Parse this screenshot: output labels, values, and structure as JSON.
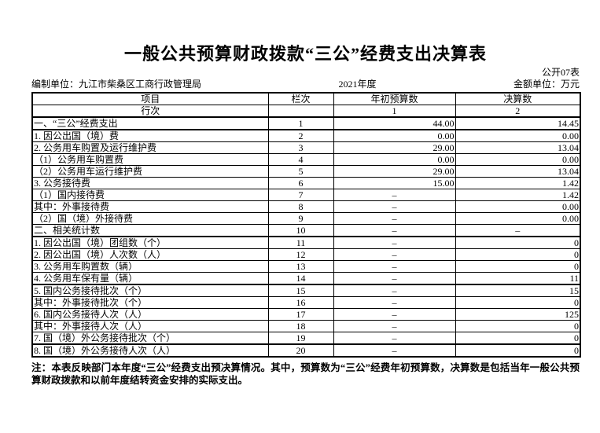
{
  "doc": {
    "title": "一般公共预算财政拨款“三公”经费支出决算表",
    "table_code": "公开07表",
    "prepared_by": "编制单位：九江市柴桑区工商行政管理局",
    "fiscal_year": "2021年度",
    "amount_unit": "金额单位：万元"
  },
  "table": {
    "col_headers": {
      "item": "项目",
      "column_no": "栏次",
      "initial_budget": "年初预算数",
      "final_accounts": "决算数"
    },
    "sub_headers": {
      "row_label": "行次",
      "column_no": "",
      "initial_budget": "1",
      "final_accounts": "2"
    },
    "rows": [
      {
        "label": "一、“三公”经费支出",
        "line_no": "1",
        "initial_budget": "44.00",
        "final_accounts": "14.45",
        "indent": 0,
        "thick_bottom": true
      },
      {
        "label": "1. 因公出国（境）费",
        "line_no": "2",
        "initial_budget": "0.00",
        "final_accounts": "0.00",
        "indent": 1,
        "thick_bottom": false
      },
      {
        "label": "2. 公务用车购置及运行维护费",
        "line_no": "3",
        "initial_budget": "29.00",
        "final_accounts": "13.04",
        "indent": 1,
        "thick_bottom": false
      },
      {
        "label": "（1）公务用车购置费",
        "line_no": "4",
        "initial_budget": "0.00",
        "final_accounts": "0.00",
        "indent": 2,
        "thick_bottom": false
      },
      {
        "label": "（2）公务用车运行维护费",
        "line_no": "5",
        "initial_budget": "29.00",
        "final_accounts": "13.04",
        "indent": 2,
        "thick_bottom": false
      },
      {
        "label": "3. 公务接待费",
        "line_no": "6",
        "initial_budget": "15.00",
        "final_accounts": "1.42",
        "indent": 1,
        "thick_bottom": false
      },
      {
        "label": "（1）国内接待费",
        "line_no": "7",
        "initial_budget": "–",
        "final_accounts": "1.42",
        "indent": 2,
        "thick_bottom": false
      },
      {
        "label": "其中：外事接待费",
        "line_no": "8",
        "initial_budget": "–",
        "final_accounts": "0.00",
        "indent": 3,
        "thick_bottom": false
      },
      {
        "label": "（2）国（境）外接待费",
        "line_no": "9",
        "initial_budget": "–",
        "final_accounts": "0.00",
        "indent": 2,
        "thick_bottom": false
      },
      {
        "label": "二、相关统计数",
        "line_no": "10",
        "initial_budget": "–",
        "final_accounts": "–",
        "indent": 0,
        "thick_bottom": true
      },
      {
        "label": "1. 因公出国（境）团组数（个）",
        "line_no": "11",
        "initial_budget": "–",
        "final_accounts": "0",
        "indent": 1,
        "thick_bottom": false
      },
      {
        "label": "2. 因公出国（境）人次数（人）",
        "line_no": "12",
        "initial_budget": "–",
        "final_accounts": "0",
        "indent": 1,
        "thick_bottom": false
      },
      {
        "label": "3. 公务用车购置数（辆）",
        "line_no": "13",
        "initial_budget": "–",
        "final_accounts": "0",
        "indent": 1,
        "thick_bottom": false
      },
      {
        "label": "4. 公务用车保有量（辆）",
        "line_no": "14",
        "initial_budget": "–",
        "final_accounts": "11",
        "indent": 1,
        "thick_bottom": true
      },
      {
        "label": "5. 国内公务接待批次（个）",
        "line_no": "15",
        "initial_budget": "–",
        "final_accounts": "15",
        "indent": 1,
        "thick_bottom": false
      },
      {
        "label": "其中：外事接待批次（个）",
        "line_no": "16",
        "initial_budget": "–",
        "final_accounts": "0",
        "indent": 1,
        "thick_bottom": false
      },
      {
        "label": "6. 国内公务接待人次（人）",
        "line_no": "17",
        "initial_budget": "–",
        "final_accounts": "125",
        "indent": 1,
        "thick_bottom": false
      },
      {
        "label": "其中：外事接待人次（人）",
        "line_no": "18",
        "initial_budget": "–",
        "final_accounts": "0",
        "indent": 1,
        "thick_bottom": false
      },
      {
        "label": "7. 国（境）外公务接待批次（个）",
        "line_no": "19",
        "initial_budget": "–",
        "final_accounts": "0",
        "indent": 1,
        "thick_bottom": true
      },
      {
        "label": "8. 国（境）外公务接待人次（人）",
        "line_no": "20",
        "initial_budget": "–",
        "final_accounts": "0",
        "indent": 1,
        "thick_bottom": false
      }
    ]
  },
  "note": "注：本表反映部门本年度“三公”经费支出预决算情况。其中，预算数为“三公”经费年初预算数，决算数是包括当年一般公共预算财政拨款和以前年度结转资金安排的实际支出。",
  "colors": {
    "text": "#000000",
    "border": "#000000",
    "background": "#ffffff"
  }
}
